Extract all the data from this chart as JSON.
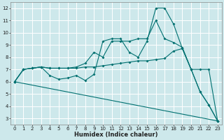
{
  "xlabel": "Humidex (Indice chaleur)",
  "xlim": [
    -0.5,
    23.5
  ],
  "ylim": [
    2.5,
    12.5
  ],
  "yticks": [
    3,
    4,
    5,
    6,
    7,
    8,
    9,
    10,
    11,
    12
  ],
  "xticks": [
    0,
    1,
    2,
    3,
    4,
    5,
    6,
    7,
    8,
    9,
    10,
    11,
    12,
    13,
    14,
    15,
    16,
    17,
    18,
    19,
    20,
    21,
    22,
    23
  ],
  "bg_color": "#cde8eb",
  "grid_color": "#ffffff",
  "line_color": "#007070",
  "line1_x": [
    0,
    1,
    2,
    3,
    4,
    5,
    6,
    7,
    8,
    9,
    10,
    11,
    12,
    13,
    14,
    15,
    16,
    17,
    18,
    19,
    20,
    21,
    22,
    23
  ],
  "line1_y": [
    6.0,
    7.0,
    7.1,
    7.2,
    6.5,
    6.2,
    6.3,
    6.5,
    6.1,
    6.6,
    9.3,
    9.5,
    9.5,
    8.4,
    8.0,
    9.3,
    12.0,
    12.0,
    10.7,
    8.7,
    7.0,
    5.2,
    4.1,
    2.8
  ],
  "line2_x": [
    0,
    1,
    2,
    3,
    4,
    5,
    6,
    7,
    8,
    9,
    10,
    11,
    12,
    13,
    14,
    15,
    16,
    17,
    18,
    19,
    20,
    21,
    22,
    23
  ],
  "line2_y": [
    6.0,
    7.0,
    7.1,
    7.2,
    7.1,
    7.1,
    7.1,
    7.2,
    7.5,
    8.4,
    8.0,
    9.3,
    9.3,
    9.3,
    9.5,
    9.5,
    11.0,
    9.5,
    9.2,
    8.8,
    7.0,
    5.2,
    4.1,
    2.8
  ],
  "line3_x": [
    0,
    1,
    2,
    3,
    4,
    5,
    6,
    7,
    8,
    9,
    10,
    11,
    12,
    13,
    14,
    15,
    16,
    17,
    18,
    19,
    20,
    21,
    22,
    23
  ],
  "line3_y": [
    6.0,
    7.0,
    7.1,
    7.2,
    7.1,
    7.1,
    7.1,
    7.1,
    7.2,
    7.2,
    7.3,
    7.4,
    7.5,
    7.6,
    7.7,
    7.7,
    7.8,
    7.9,
    8.5,
    8.7,
    7.0,
    7.0,
    7.0,
    2.8
  ],
  "line4_x": [
    0,
    23
  ],
  "line4_y": [
    6.0,
    2.8
  ],
  "tick_labelsize": 5.0,
  "xlabel_fontsize": 6.0
}
